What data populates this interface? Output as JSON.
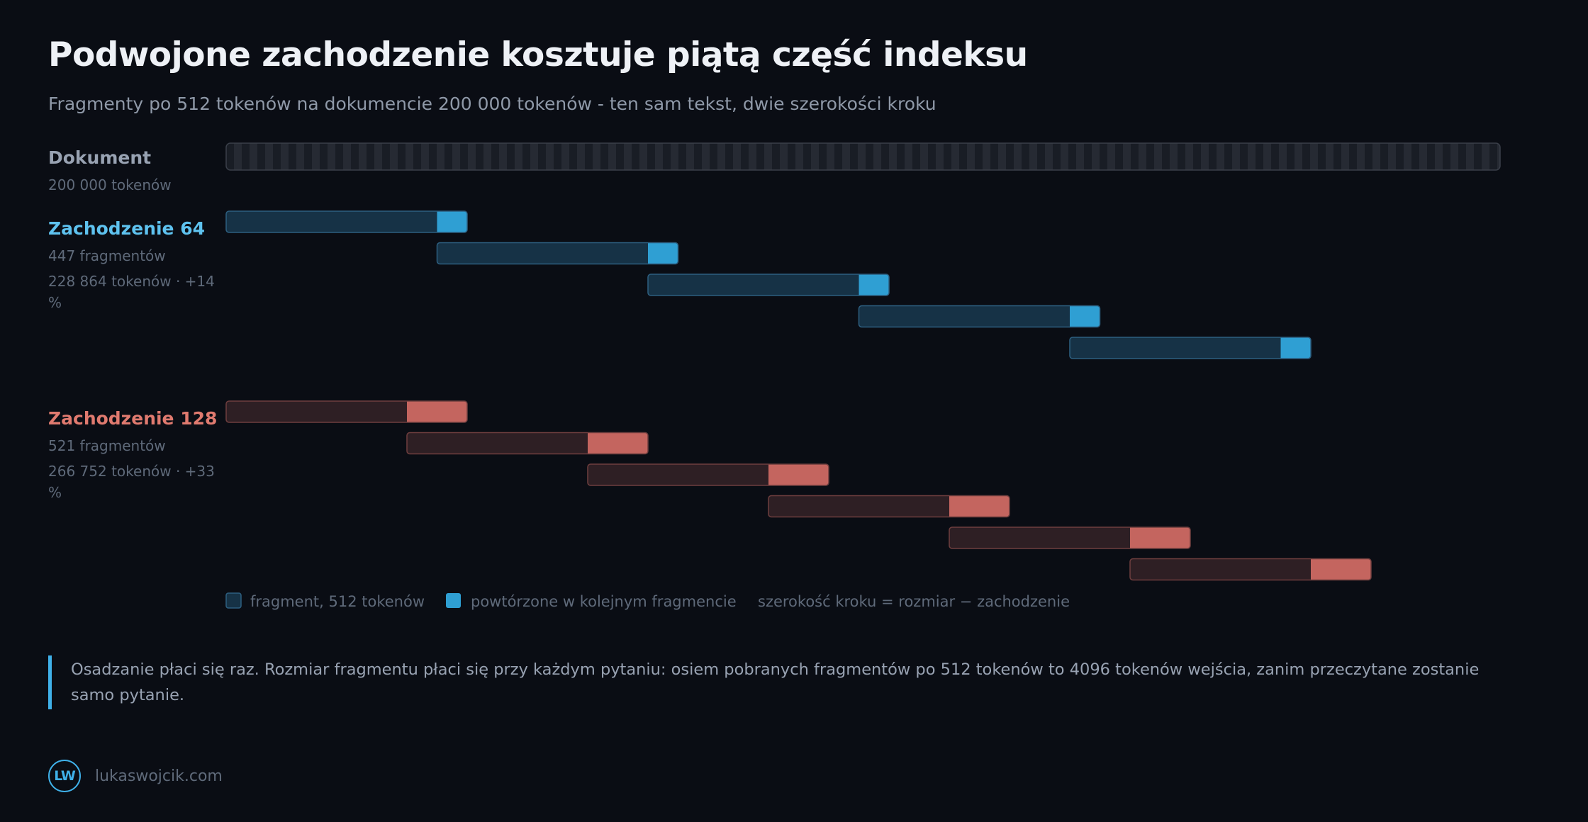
{
  "header": {
    "title": "Podwojone zachodzenie kosztuje piątą część indeksu",
    "subtitle": "Fragmenty po 512 tokenów na dokumencie 200 000 tokenów - ten sam tekst, dwie szerokości kroku"
  },
  "chart_data": {
    "type": "diagram",
    "chunk_size": 512,
    "document": {
      "label": "Dokument",
      "meta": "200 000 tokenów",
      "tokens": 200000
    },
    "rows": [
      {
        "label": "Zachodzenie 64",
        "meta1": "447 fragmentów",
        "meta2_line1": "228 864 tokenów · +14",
        "meta2_line2": "%",
        "overlap": 64,
        "chunks_shown": 5,
        "color_fill": "#163246",
        "color_border": "#2d5f80",
        "color_overlap": "#2f9fd3",
        "color_label": "#5ec2ef"
      },
      {
        "label": "Zachodzenie 128",
        "meta1": "521 fragmentów",
        "meta2_line1": "266 752 tokenów · +33",
        "meta2_line2": "%",
        "overlap": 128,
        "chunks_shown": 6,
        "color_fill": "#2e1f24",
        "color_border": "#6e3e3e",
        "color_overlap": "#c4655f",
        "color_label": "#e07a6f"
      }
    ],
    "legend": [
      {
        "label": "fragment, 512 tokenów",
        "color": "#163246"
      },
      {
        "label": "powtórzone w kolejnym fragmencie",
        "color": "#2f9fd3"
      },
      {
        "label": "szerokość kroku = rozmiar − zachodzenie"
      }
    ]
  },
  "callout": {
    "text": "Osadzanie płaci się raz. Rozmiar fragmentu płaci się przy każdym pytaniu: osiem pobranych fragmentów po 512 tokenów to 4096 tokenów wejścia, zanim przeczytane zostanie samo pytanie."
  },
  "footer": {
    "logo": "LW",
    "site": "lukaswojcik.com"
  }
}
